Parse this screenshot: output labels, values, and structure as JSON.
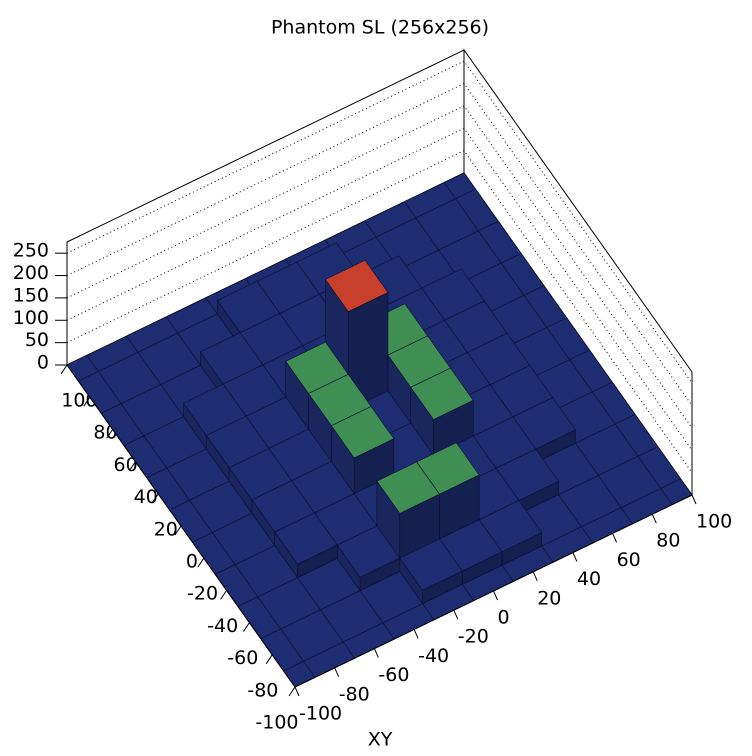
{
  "chart_data": {
    "type": "lego",
    "title": "Phantom SL (256x256)",
    "xlabel": "XY",
    "x": [
      -100,
      -80,
      -60,
      -40,
      -20,
      0,
      20,
      40,
      60,
      80,
      100
    ],
    "y": [
      -100,
      -80,
      -60,
      -40,
      -20,
      0,
      20,
      40,
      60,
      80,
      100
    ],
    "z": [
      [
        0,
        0,
        0,
        0,
        0,
        0,
        0,
        0,
        0,
        0,
        0
      ],
      [
        0,
        0,
        0,
        0,
        30,
        30,
        30,
        0,
        0,
        0,
        0
      ],
      [
        0,
        0,
        0,
        30,
        130,
        130,
        30,
        30,
        0,
        0,
        0
      ],
      [
        0,
        0,
        30,
        30,
        30,
        30,
        30,
        30,
        30,
        0,
        0
      ],
      [
        0,
        0,
        30,
        30,
        110,
        30,
        110,
        30,
        30,
        0,
        0
      ],
      [
        0,
        0,
        30,
        30,
        110,
        30,
        110,
        30,
        30,
        0,
        0
      ],
      [
        0,
        0,
        30,
        30,
        110,
        250,
        110,
        30,
        30,
        0,
        0
      ],
      [
        0,
        0,
        30,
        30,
        30,
        30,
        30,
        30,
        30,
        0,
        0
      ],
      [
        0,
        0,
        0,
        30,
        30,
        30,
        30,
        30,
        0,
        0,
        0
      ],
      [
        0,
        0,
        0,
        0,
        30,
        30,
        30,
        0,
        0,
        0,
        0
      ],
      [
        0,
        0,
        0,
        0,
        0,
        0,
        0,
        0,
        0,
        0,
        0
      ]
    ],
    "xlim": [
      -100,
      100
    ],
    "ylim": [
      -100,
      100
    ],
    "zlim": [
      0,
      275
    ],
    "xticks": [
      -100,
      -80,
      -60,
      -40,
      -20,
      0,
      20,
      40,
      60,
      80,
      100
    ],
    "yticks": [
      -100,
      -80,
      -60,
      -40,
      -20,
      0,
      20,
      40,
      60,
      80,
      100
    ],
    "zticks": [
      0,
      50,
      100,
      150,
      200,
      250
    ],
    "grid": true,
    "palette": [
      "#1e2c72",
      "#2a3c9a",
      "#3f8f55",
      "#5cb05a",
      "#c8402c"
    ]
  }
}
